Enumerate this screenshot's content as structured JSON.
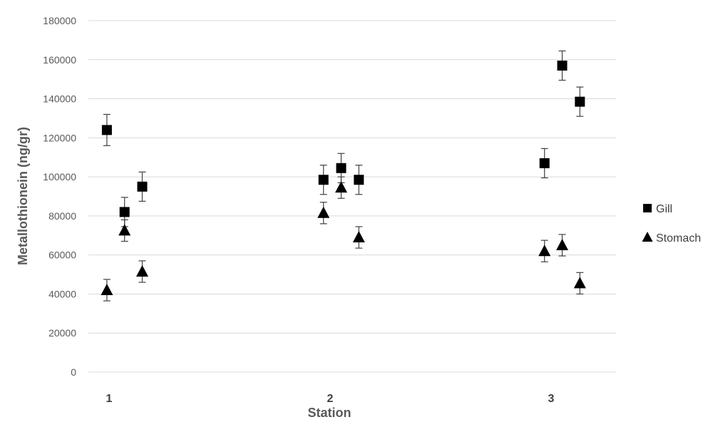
{
  "chart_data": {
    "type": "scatter",
    "xlabel": "Station",
    "ylabel": "Metallothionein (ng/gr)",
    "ylim": [
      0,
      180000
    ],
    "y_ticks": [
      "0",
      "20000",
      "40000",
      "60000",
      "80000",
      "100000",
      "120000",
      "140000",
      "160000",
      "180000"
    ],
    "x_ticks": [
      {
        "label": "1",
        "value": 1
      },
      {
        "label": "2",
        "value": 2
      },
      {
        "label": "3",
        "value": 3
      }
    ],
    "xlim": [
      0.8,
      3.6
    ],
    "grid": true,
    "legend_position": "right",
    "series": [
      {
        "name": "Gill",
        "marker": "square",
        "color": "#000000",
        "points": [
          {
            "x": 0.99,
            "y": 124000,
            "err": 8000
          },
          {
            "x": 1.07,
            "y": 82000,
            "err": 7500
          },
          {
            "x": 1.15,
            "y": 95000,
            "err": 7500
          },
          {
            "x": 1.97,
            "y": 98500,
            "err": 7500
          },
          {
            "x": 2.05,
            "y": 104500,
            "err": 7500
          },
          {
            "x": 2.13,
            "y": 98500,
            "err": 7500
          },
          {
            "x": 2.97,
            "y": 107000,
            "err": 7500
          },
          {
            "x": 3.05,
            "y": 157000,
            "err": 7500
          },
          {
            "x": 3.13,
            "y": 138500,
            "err": 7500
          }
        ]
      },
      {
        "name": "Stomach",
        "marker": "triangle",
        "color": "#000000",
        "points": [
          {
            "x": 0.99,
            "y": 42000,
            "err": 5500
          },
          {
            "x": 1.07,
            "y": 72500,
            "err": 5500
          },
          {
            "x": 1.15,
            "y": 51500,
            "err": 5500
          },
          {
            "x": 1.97,
            "y": 81500,
            "err": 5500
          },
          {
            "x": 2.05,
            "y": 94500,
            "err": 5500
          },
          {
            "x": 2.13,
            "y": 69000,
            "err": 5500
          },
          {
            "x": 2.97,
            "y": 62000,
            "err": 5500
          },
          {
            "x": 3.05,
            "y": 65000,
            "err": 5500
          },
          {
            "x": 3.13,
            "y": 45500,
            "err": 5500
          }
        ]
      }
    ]
  }
}
